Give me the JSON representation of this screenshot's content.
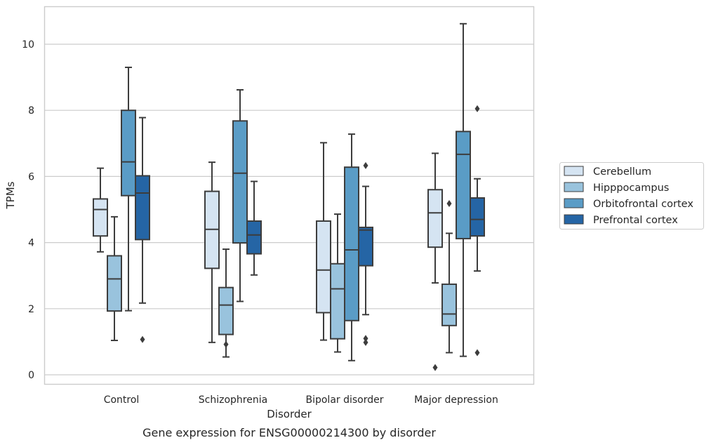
{
  "chart_data": {
    "type": "boxplot",
    "xlabel": "Disorder",
    "ylabel": "TPMs",
    "caption": "Gene expression for ENSG00000214300 by disorder",
    "ylim": [
      -0.28,
      11.15
    ],
    "yticks": [
      0,
      2,
      4,
      6,
      8,
      10
    ],
    "grid": "horizontal",
    "legend_position": "right",
    "categories": [
      "Control",
      "Schizophrenia",
      "Bipolar disorder",
      "Major depression"
    ],
    "series": [
      {
        "name": "Cerebellum",
        "color": "#d5e4f2",
        "boxes": [
          {
            "whislo": 3.72,
            "q1": 4.2,
            "med": 5.0,
            "q3": 5.32,
            "whishi": 6.25,
            "fliers": []
          },
          {
            "whislo": 0.98,
            "q1": 3.22,
            "med": 4.4,
            "q3": 5.55,
            "whishi": 6.43,
            "fliers": []
          },
          {
            "whislo": 1.05,
            "q1": 1.88,
            "med": 3.17,
            "q3": 4.65,
            "whishi": 7.02,
            "fliers": []
          },
          {
            "whislo": 2.78,
            "q1": 3.86,
            "med": 4.9,
            "q3": 5.6,
            "whishi": 6.7,
            "fliers": [
              0.22
            ]
          }
        ]
      },
      {
        "name": "Hipppocampus",
        "color": "#99c3dd",
        "boxes": [
          {
            "whislo": 1.04,
            "q1": 1.93,
            "med": 2.9,
            "q3": 3.6,
            "whishi": 4.78,
            "fliers": []
          },
          {
            "whislo": 0.54,
            "q1": 1.22,
            "med": 2.11,
            "q3": 2.64,
            "whishi": 3.8,
            "fliers": [
              0.92
            ]
          },
          {
            "whislo": 0.69,
            "q1": 1.09,
            "med": 2.6,
            "q3": 3.36,
            "whishi": 4.86,
            "fliers": []
          },
          {
            "whislo": 0.67,
            "q1": 1.49,
            "med": 1.84,
            "q3": 2.74,
            "whishi": 4.28,
            "fliers": [
              5.18
            ]
          }
        ]
      },
      {
        "name": "Orbitofrontal cortex",
        "color": "#5a9cc6",
        "boxes": [
          {
            "whislo": 1.94,
            "q1": 5.42,
            "med": 6.44,
            "q3": 8.0,
            "whishi": 9.3,
            "fliers": []
          },
          {
            "whislo": 2.22,
            "q1": 3.99,
            "med": 6.1,
            "q3": 7.68,
            "whishi": 8.62,
            "fliers": []
          },
          {
            "whislo": 0.43,
            "q1": 1.64,
            "med": 3.78,
            "q3": 6.28,
            "whishi": 7.28,
            "fliers": []
          },
          {
            "whislo": 0.56,
            "q1": 4.12,
            "med": 6.67,
            "q3": 7.36,
            "whishi": 10.62,
            "fliers": []
          }
        ]
      },
      {
        "name": "Prefrontal cortex",
        "color": "#2565a5",
        "boxes": [
          {
            "whislo": 2.17,
            "q1": 4.09,
            "med": 5.5,
            "q3": 6.02,
            "whishi": 7.78,
            "fliers": [
              1.07
            ]
          },
          {
            "whislo": 3.02,
            "q1": 3.66,
            "med": 4.23,
            "q3": 4.65,
            "whishi": 5.85,
            "fliers": []
          },
          {
            "whislo": 1.82,
            "q1": 3.3,
            "med": 4.38,
            "q3": 4.46,
            "whishi": 5.7,
            "fliers": [
              6.33,
              1.1,
              0.98
            ]
          },
          {
            "whislo": 3.14,
            "q1": 4.2,
            "med": 4.7,
            "q3": 5.35,
            "whishi": 5.93,
            "fliers": [
              8.05,
              0.67
            ]
          }
        ]
      }
    ]
  }
}
